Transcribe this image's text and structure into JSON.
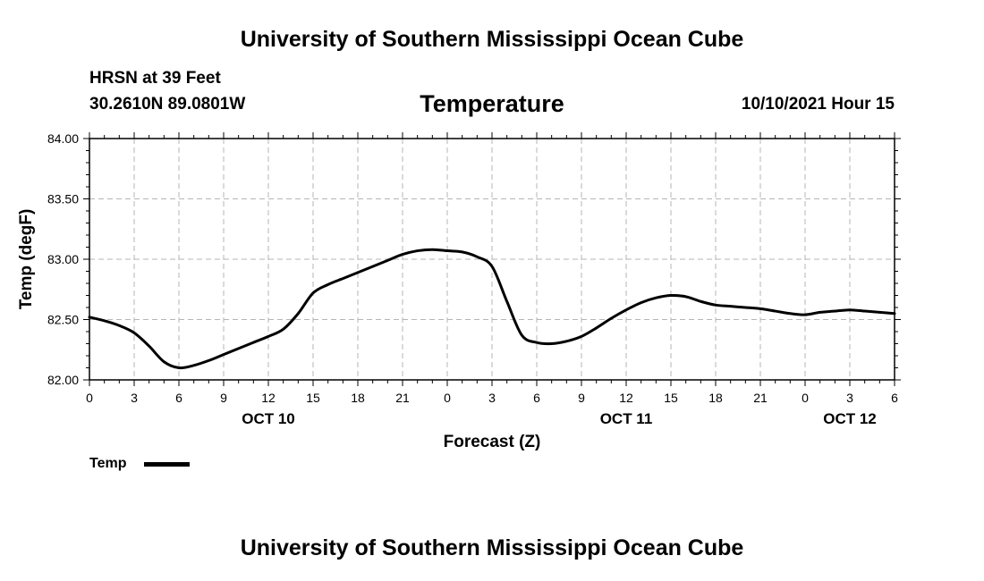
{
  "header": {
    "org_title": "University of Southern Mississippi Ocean Cube",
    "station": "HRSN at 39 Feet",
    "coords": "30.2610N  89.0801W",
    "variable": "Temperature",
    "datetime": "10/10/2021 Hour 15"
  },
  "footer": {
    "org_title": "University of Southern Mississippi Ocean Cube"
  },
  "legend": {
    "label": "Temp",
    "color": "#000000"
  },
  "chart_data": {
    "type": "line",
    "title": "Temperature",
    "xlabel": "Forecast (Z)",
    "ylabel": "Temp (degF)",
    "ylim": [
      82.0,
      84.0
    ],
    "yticks": [
      82.0,
      82.5,
      83.0,
      83.5,
      84.0
    ],
    "ytick_labels": [
      "82.00",
      "82.50",
      "83.00",
      "83.50",
      "84.00"
    ],
    "xlim": [
      0,
      54
    ],
    "xticks": [
      0,
      3,
      6,
      9,
      12,
      15,
      18,
      21,
      24,
      27,
      30,
      33,
      36,
      39,
      42,
      45,
      48,
      51,
      54
    ],
    "xtick_labels": [
      "0",
      "3",
      "6",
      "9",
      "12",
      "15",
      "18",
      "21",
      "0",
      "3",
      "6",
      "9",
      "12",
      "15",
      "18",
      "21",
      "0",
      "3",
      "6"
    ],
    "date_labels": [
      {
        "text": "OCT 10",
        "x": 12
      },
      {
        "text": "OCT 11",
        "x": 36
      },
      {
        "text": "OCT 12",
        "x": 51
      }
    ],
    "grid": true,
    "series": [
      {
        "name": "Temp",
        "x": [
          0,
          1,
          2,
          3,
          4,
          5,
          6,
          7,
          8,
          9,
          10,
          11,
          12,
          13,
          14,
          15,
          16,
          17,
          18,
          19,
          20,
          21,
          22,
          23,
          24,
          25,
          26,
          27,
          28,
          29,
          30,
          31,
          32,
          33,
          34,
          35,
          36,
          37,
          38,
          39,
          40,
          41,
          42,
          43,
          44,
          45,
          46,
          47,
          48,
          49,
          50,
          51,
          52,
          53,
          54
        ],
        "values": [
          82.52,
          82.49,
          82.45,
          82.39,
          82.28,
          82.15,
          82.1,
          82.12,
          82.16,
          82.21,
          82.26,
          82.31,
          82.36,
          82.42,
          82.55,
          82.72,
          82.79,
          82.84,
          82.89,
          82.94,
          82.99,
          83.04,
          83.07,
          83.08,
          83.07,
          83.06,
          83.02,
          82.94,
          82.65,
          82.37,
          82.31,
          82.3,
          82.32,
          82.36,
          82.43,
          82.51,
          82.58,
          82.64,
          82.68,
          82.7,
          82.69,
          82.65,
          82.62,
          82.61,
          82.6,
          82.59,
          82.57,
          82.55,
          82.54,
          82.56,
          82.57,
          82.58,
          82.57,
          82.56,
          82.55
        ]
      }
    ]
  }
}
